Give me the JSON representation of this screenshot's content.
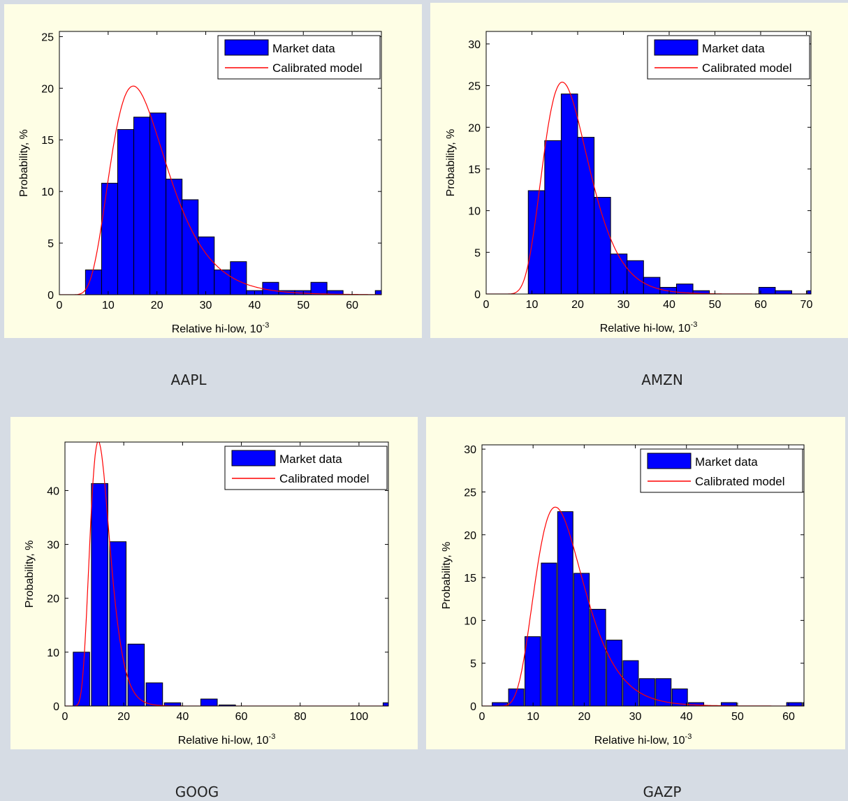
{
  "colors": {
    "background": "#d6dce4",
    "panel": "#fefee5",
    "bars": "#0000ff",
    "model_line": "#ff0000"
  },
  "chart_data": [
    {
      "ticker": "AAPL",
      "type": "bar",
      "xlabel": "Relative hi-low, 10",
      "xlabel_exp": "-3",
      "ylabel": "Probability, %",
      "xlim": [
        0,
        66
      ],
      "ylim": [
        0,
        25.5
      ],
      "xticks": [
        0,
        10,
        20,
        30,
        40,
        50,
        60
      ],
      "yticks": [
        0,
        5,
        10,
        15,
        20,
        25
      ],
      "legend": [
        "Market data",
        "Calibrated model"
      ],
      "legend_position": "top-right",
      "bar_width": 3.3,
      "bars": [
        [
          7,
          2.4
        ],
        [
          10.3,
          10.8
        ],
        [
          13.6,
          16
        ],
        [
          16.9,
          17.2
        ],
        [
          20.2,
          17.6
        ],
        [
          23.5,
          11.2
        ],
        [
          26.8,
          9.2
        ],
        [
          30.1,
          5.6
        ],
        [
          33.4,
          2.4
        ],
        [
          36.7,
          3.2
        ],
        [
          40,
          0.4
        ],
        [
          43.3,
          1.2
        ],
        [
          46.6,
          0.4
        ],
        [
          49.9,
          0.4
        ],
        [
          53.2,
          1.2
        ],
        [
          56.5,
          0.4
        ],
        [
          59.8,
          0
        ],
        [
          63.1,
          0
        ],
        [
          66.4,
          0.4
        ]
      ],
      "model": {
        "mode": 17.5,
        "peak": 18.8,
        "sigma": 0.38
      }
    },
    {
      "ticker": "AMZN",
      "type": "bar",
      "xlabel": "Relative hi-low, 10",
      "xlabel_exp": "-3",
      "ylabel": "Probability, %",
      "xlim": [
        0,
        71
      ],
      "ylim": [
        0,
        31.5
      ],
      "xticks": [
        0,
        10,
        20,
        30,
        40,
        50,
        60,
        70
      ],
      "yticks": [
        0,
        5,
        10,
        15,
        20,
        25,
        30
      ],
      "legend": [
        "Market data",
        "Calibrated model"
      ],
      "legend_position": "top-right",
      "bar_width": 3.6,
      "bars": [
        [
          11,
          12.4
        ],
        [
          14.6,
          18.4
        ],
        [
          18.2,
          24
        ],
        [
          21.8,
          18.8
        ],
        [
          25.4,
          11.6
        ],
        [
          29,
          4.8
        ],
        [
          32.6,
          4
        ],
        [
          36.2,
          2
        ],
        [
          39.8,
          0.8
        ],
        [
          43.4,
          1.2
        ],
        [
          47,
          0.4
        ],
        [
          50.6,
          0
        ],
        [
          54.2,
          0
        ],
        [
          57.8,
          0
        ],
        [
          61.4,
          0.8
        ],
        [
          65,
          0.4
        ],
        [
          68.6,
          0
        ],
        [
          72,
          0.4
        ]
      ],
      "model": {
        "mode": 18.2,
        "peak": 24.3,
        "sigma": 0.3
      }
    },
    {
      "ticker": "GOOG",
      "type": "bar",
      "xlabel": "Relative hi-low, 10",
      "xlabel_exp": "-3",
      "ylabel": "Probability, %",
      "xlim": [
        0,
        110
      ],
      "ylim": [
        0,
        49
      ],
      "xticks": [
        0,
        20,
        40,
        60,
        80,
        100
      ],
      "yticks": [
        0,
        10,
        20,
        30,
        40
      ],
      "legend": [
        "Market data",
        "Calibrated model"
      ],
      "legend_position": "top-right",
      "bar_width": 5.6,
      "bars": [
        [
          5.6,
          10
        ],
        [
          11.8,
          41.3
        ],
        [
          18,
          30.5
        ],
        [
          24.2,
          11.5
        ],
        [
          30.4,
          4.3
        ],
        [
          36.6,
          0.6
        ],
        [
          42.8,
          0
        ],
        [
          49,
          1.3
        ],
        [
          55.2,
          0.2
        ],
        [
          111,
          0.6
        ]
      ],
      "model": {
        "mode": 12.4,
        "peak": 47,
        "sigma": 0.3
      }
    },
    {
      "ticker": "GAZP",
      "type": "bar",
      "xlabel": "Relative hi-low, 10",
      "xlabel_exp": "-3",
      "ylabel": "Probability, %",
      "xlim": [
        0,
        63
      ],
      "ylim": [
        0,
        30.5
      ],
      "xticks": [
        0,
        10,
        20,
        30,
        40,
        50,
        60
      ],
      "yticks": [
        0,
        5,
        10,
        15,
        20,
        25,
        30
      ],
      "legend": [
        "Market data",
        "Calibrated model"
      ],
      "legend_position": "top-right",
      "bar_width": 3.0,
      "bars": [
        [
          3.5,
          0.4
        ],
        [
          6.7,
          2
        ],
        [
          9.9,
          8.1
        ],
        [
          13.1,
          16.7
        ],
        [
          16.3,
          22.7
        ],
        [
          19.5,
          15.5
        ],
        [
          22.7,
          11.3
        ],
        [
          25.9,
          7.7
        ],
        [
          29.1,
          5.3
        ],
        [
          32.3,
          3.2
        ],
        [
          35.5,
          3.2
        ],
        [
          38.7,
          2
        ],
        [
          41.9,
          0.4
        ],
        [
          45.1,
          0
        ],
        [
          48.3,
          0.4
        ],
        [
          51.5,
          0
        ],
        [
          54.7,
          0
        ],
        [
          57.9,
          0
        ],
        [
          61.1,
          0.4
        ],
        [
          64.3,
          0.4
        ]
      ],
      "model": {
        "mode": 16,
        "peak": 22,
        "sigma": 0.33
      }
    }
  ]
}
